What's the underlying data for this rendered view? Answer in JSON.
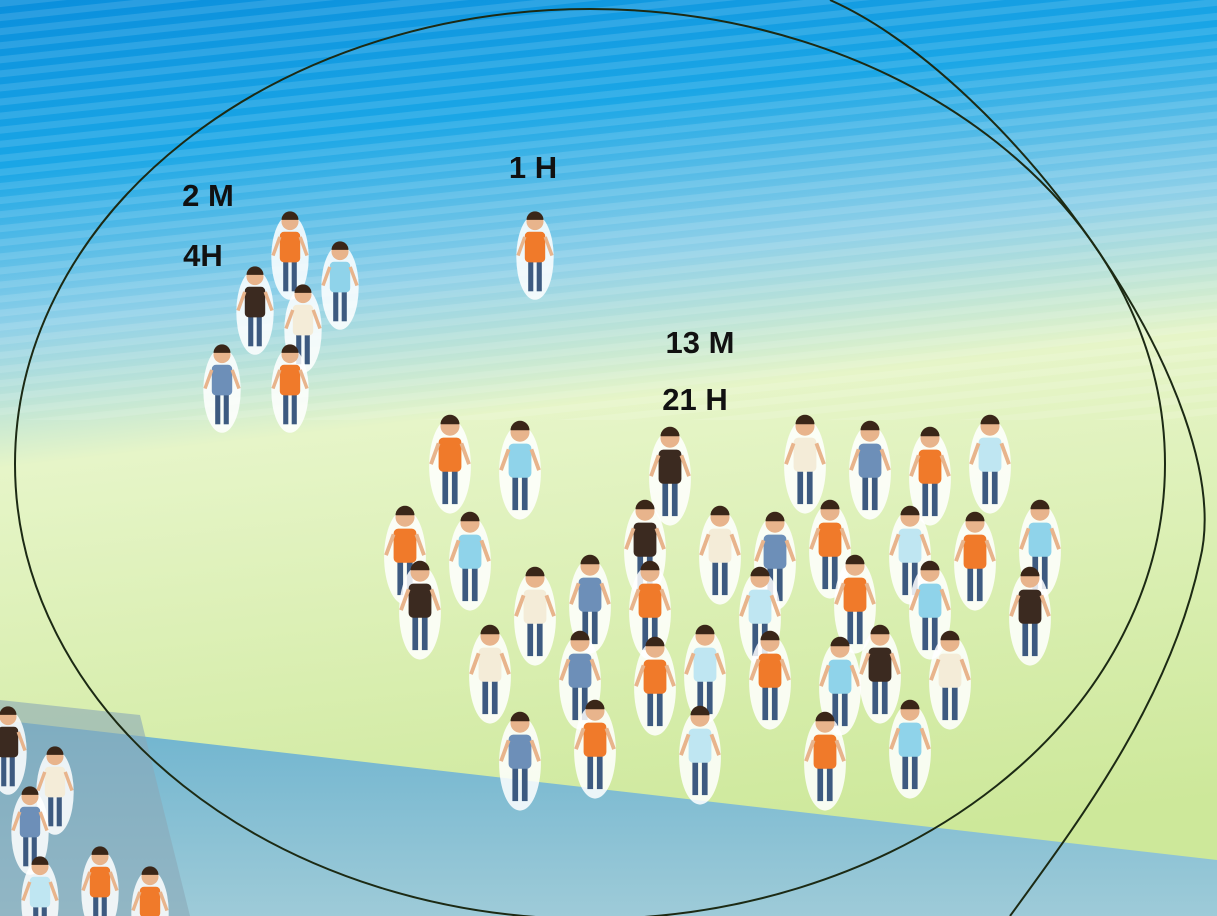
{
  "groups": [
    {
      "lines": [
        "2 M",
        "4H"
      ]
    },
    {
      "lines": [
        "1 H"
      ]
    },
    {
      "lines": [
        "13 M",
        "21 H"
      ]
    }
  ]
}
